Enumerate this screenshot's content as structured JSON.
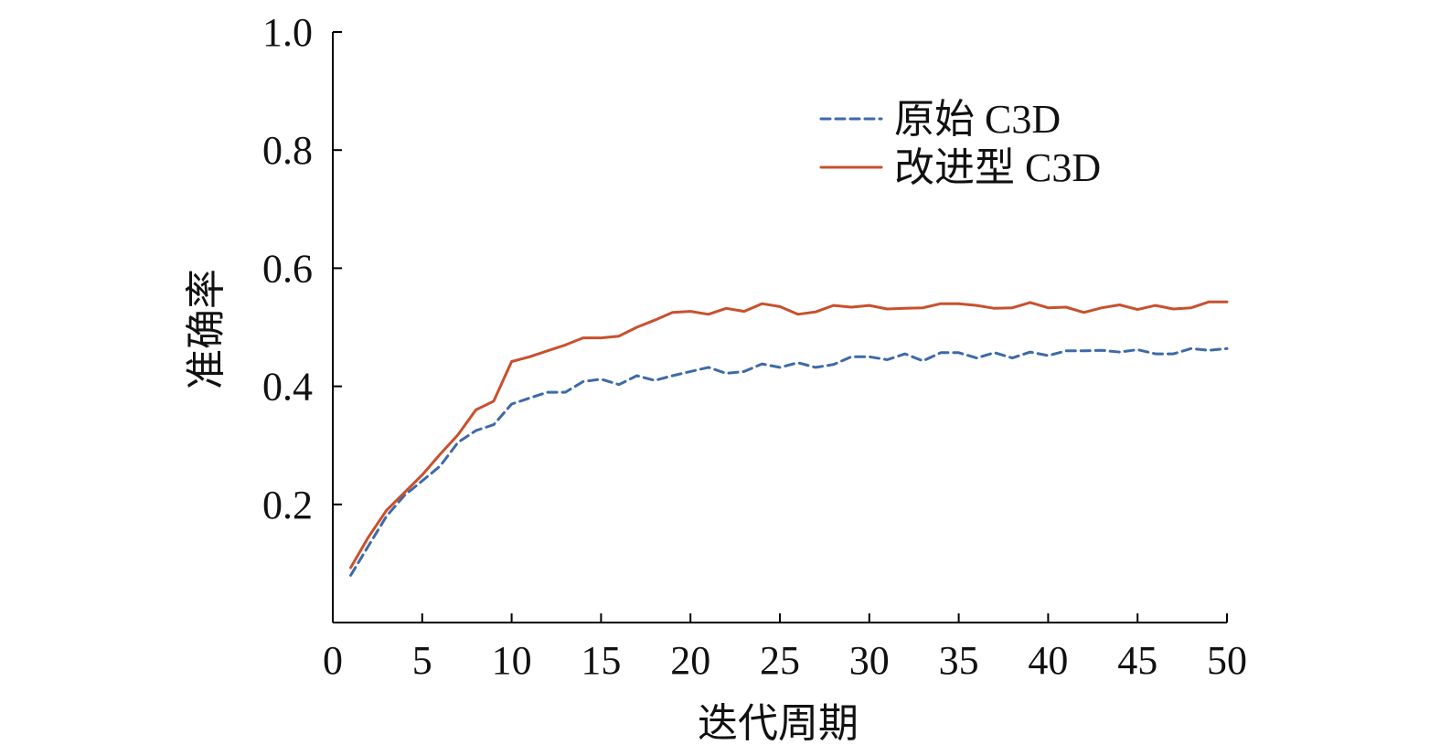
{
  "chart_data": {
    "type": "line",
    "xlabel": "迭代周期",
    "ylabel": "准确率",
    "xlim": [
      0,
      50
    ],
    "ylim": [
      0,
      1.0
    ],
    "x_ticks": [
      "0",
      "5",
      "10",
      "15",
      "20",
      "25",
      "30",
      "35",
      "40",
      "45",
      "50"
    ],
    "y_ticks": [
      "0.2",
      "0.4",
      "0.6",
      "0.8",
      "1.0"
    ],
    "legend_position": "top-right",
    "grid": false,
    "x": [
      1,
      2,
      3,
      4,
      5,
      6,
      7,
      8,
      9,
      10,
      11,
      12,
      13,
      14,
      15,
      16,
      17,
      18,
      19,
      20,
      21,
      22,
      23,
      24,
      25,
      26,
      27,
      28,
      29,
      30,
      31,
      32,
      33,
      34,
      35,
      36,
      37,
      38,
      39,
      40,
      41,
      42,
      43,
      44,
      45,
      46,
      47,
      48,
      49,
      50
    ],
    "series": [
      {
        "name": "原始 C3D",
        "color": "#3d6aa8",
        "style": "dashed",
        "values": [
          0.08,
          0.13,
          0.18,
          0.215,
          0.24,
          0.265,
          0.305,
          0.325,
          0.335,
          0.37,
          0.38,
          0.39,
          0.39,
          0.408,
          0.412,
          0.403,
          0.418,
          0.41,
          0.418,
          0.425,
          0.432,
          0.422,
          0.425,
          0.438,
          0.432,
          0.44,
          0.432,
          0.437,
          0.45,
          0.45,
          0.445,
          0.455,
          0.443,
          0.457,
          0.457,
          0.448,
          0.457,
          0.448,
          0.458,
          0.452,
          0.46,
          0.46,
          0.461,
          0.458,
          0.462,
          0.455,
          0.455,
          0.464,
          0.461,
          0.464
        ]
      },
      {
        "name": "改进型 C3D",
        "color": "#c9502e",
        "style": "solid",
        "values": [
          0.093,
          0.145,
          0.19,
          0.22,
          0.25,
          0.285,
          0.318,
          0.36,
          0.375,
          0.442,
          0.45,
          0.46,
          0.47,
          0.482,
          0.482,
          0.485,
          0.5,
          0.512,
          0.525,
          0.527,
          0.522,
          0.532,
          0.527,
          0.54,
          0.535,
          0.522,
          0.526,
          0.537,
          0.534,
          0.537,
          0.531,
          0.532,
          0.533,
          0.54,
          0.54,
          0.537,
          0.532,
          0.533,
          0.542,
          0.533,
          0.534,
          0.525,
          0.533,
          0.538,
          0.53,
          0.537,
          0.531,
          0.533,
          0.543,
          0.543
        ]
      }
    ]
  }
}
